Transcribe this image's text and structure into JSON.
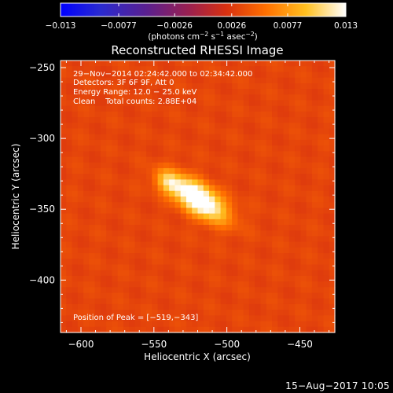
{
  "chart_data": {
    "type": "heatmap",
    "title": "Reconstructed RHESSI Image",
    "xlabel": "Heliocentric X (arcsec)",
    "ylabel": "Heliocentric Y (arcsec)",
    "xlim": [
      -614,
      -426
    ],
    "ylim": [
      -437,
      -245
    ],
    "x_ticks": [
      -600,
      -550,
      -500,
      -450
    ],
    "y_ticks": [
      -250,
      -300,
      -350,
      -400
    ],
    "x_tick_labels": [
      "−600",
      "−550",
      "−500",
      "−450"
    ],
    "y_tick_labels": [
      "−250",
      "−300",
      "−350",
      "−400"
    ],
    "colorbar": {
      "min": -0.013,
      "max": 0.013,
      "tick_values": [
        -0.013,
        -0.0077,
        -0.0026,
        0.0026,
        0.0077,
        0.013
      ],
      "tick_labels": [
        "−0.013",
        "−0.0077",
        "−0.0026",
        "0.0026",
        "0.0077",
        "0.013"
      ],
      "units_main": "(photons cm",
      "units_exp1": "−2",
      "units_mid1": " s",
      "units_exp2": "−1",
      "units_mid2": " asec",
      "units_exp3": "−2",
      "units_close": ")"
    },
    "annotations": [
      "29−Nov−2014 02:24:42.000 to 02:34:42.000",
      "Detectors: 3F 6F 9F, Att 0",
      "Energy Range: 12.0 − 25.0 keV",
      "Clean    Total counts: 2.88E+04"
    ],
    "peak_label": "Position of Peak = [−519,−343]",
    "sources": [
      {
        "x": -519,
        "y": -343,
        "amplitude": 0.013,
        "sigma_major": 15,
        "sigma_minor": 7,
        "angle_deg": -35
      },
      {
        "x": -540,
        "y": -331,
        "amplitude": 0.0055,
        "sigma_major": 7,
        "sigma_minor": 5,
        "angle_deg": -35
      }
    ],
    "background_level": 0.0033
  },
  "footer": {
    "date": "15−Aug−2017 10:05"
  },
  "colors": {
    "background": "#000000",
    "axes": "#ffffff",
    "colormap": [
      "#0000ff",
      "#2020c8",
      "#60208a",
      "#a02050",
      "#d83010",
      "#ff7000",
      "#ffd030",
      "#ffffff"
    ]
  }
}
